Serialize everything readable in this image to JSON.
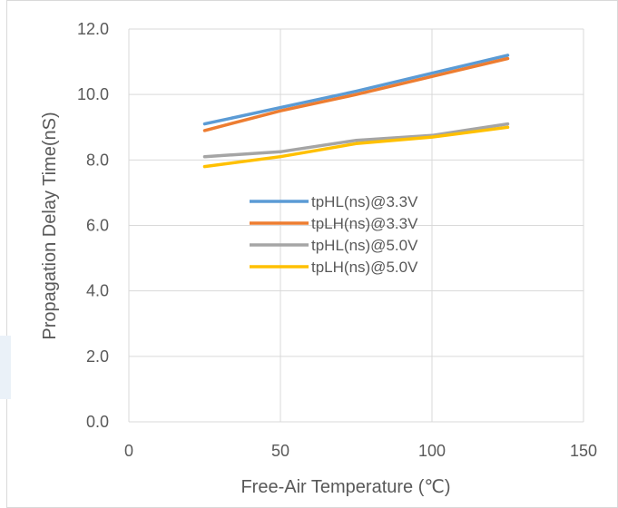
{
  "chart_data": {
    "type": "line",
    "xlabel": "Free-Air Temperature  (℃)",
    "ylabel": "Propagation Delay Time(nS)",
    "xlim": [
      0,
      150
    ],
    "ylim": [
      0,
      12
    ],
    "xticks": [
      "0",
      "50",
      "100",
      "150"
    ],
    "yticks": [
      "0.0",
      "2.0",
      "4.0",
      "6.0",
      "8.0",
      "10.0",
      "12.0"
    ],
    "grid": true,
    "legend_position": "center",
    "x": [
      25,
      50,
      75,
      100,
      125
    ],
    "series": [
      {
        "name": "tpHL(ns)@3.3V",
        "color": "#5B9BD5",
        "values": [
          9.1,
          9.6,
          10.1,
          10.65,
          11.2
        ]
      },
      {
        "name": "tpLH(ns)@3.3V",
        "color": "#ED7D31",
        "values": [
          8.9,
          9.5,
          10.0,
          10.55,
          11.1
        ]
      },
      {
        "name": "tpHL(ns)@5.0V",
        "color": "#A5A5A5",
        "values": [
          8.1,
          8.25,
          8.6,
          8.75,
          9.1
        ]
      },
      {
        "name": "tpLH(ns)@5.0V",
        "color": "#FFC000",
        "values": [
          7.8,
          8.1,
          8.5,
          8.7,
          9.0
        ]
      }
    ]
  }
}
